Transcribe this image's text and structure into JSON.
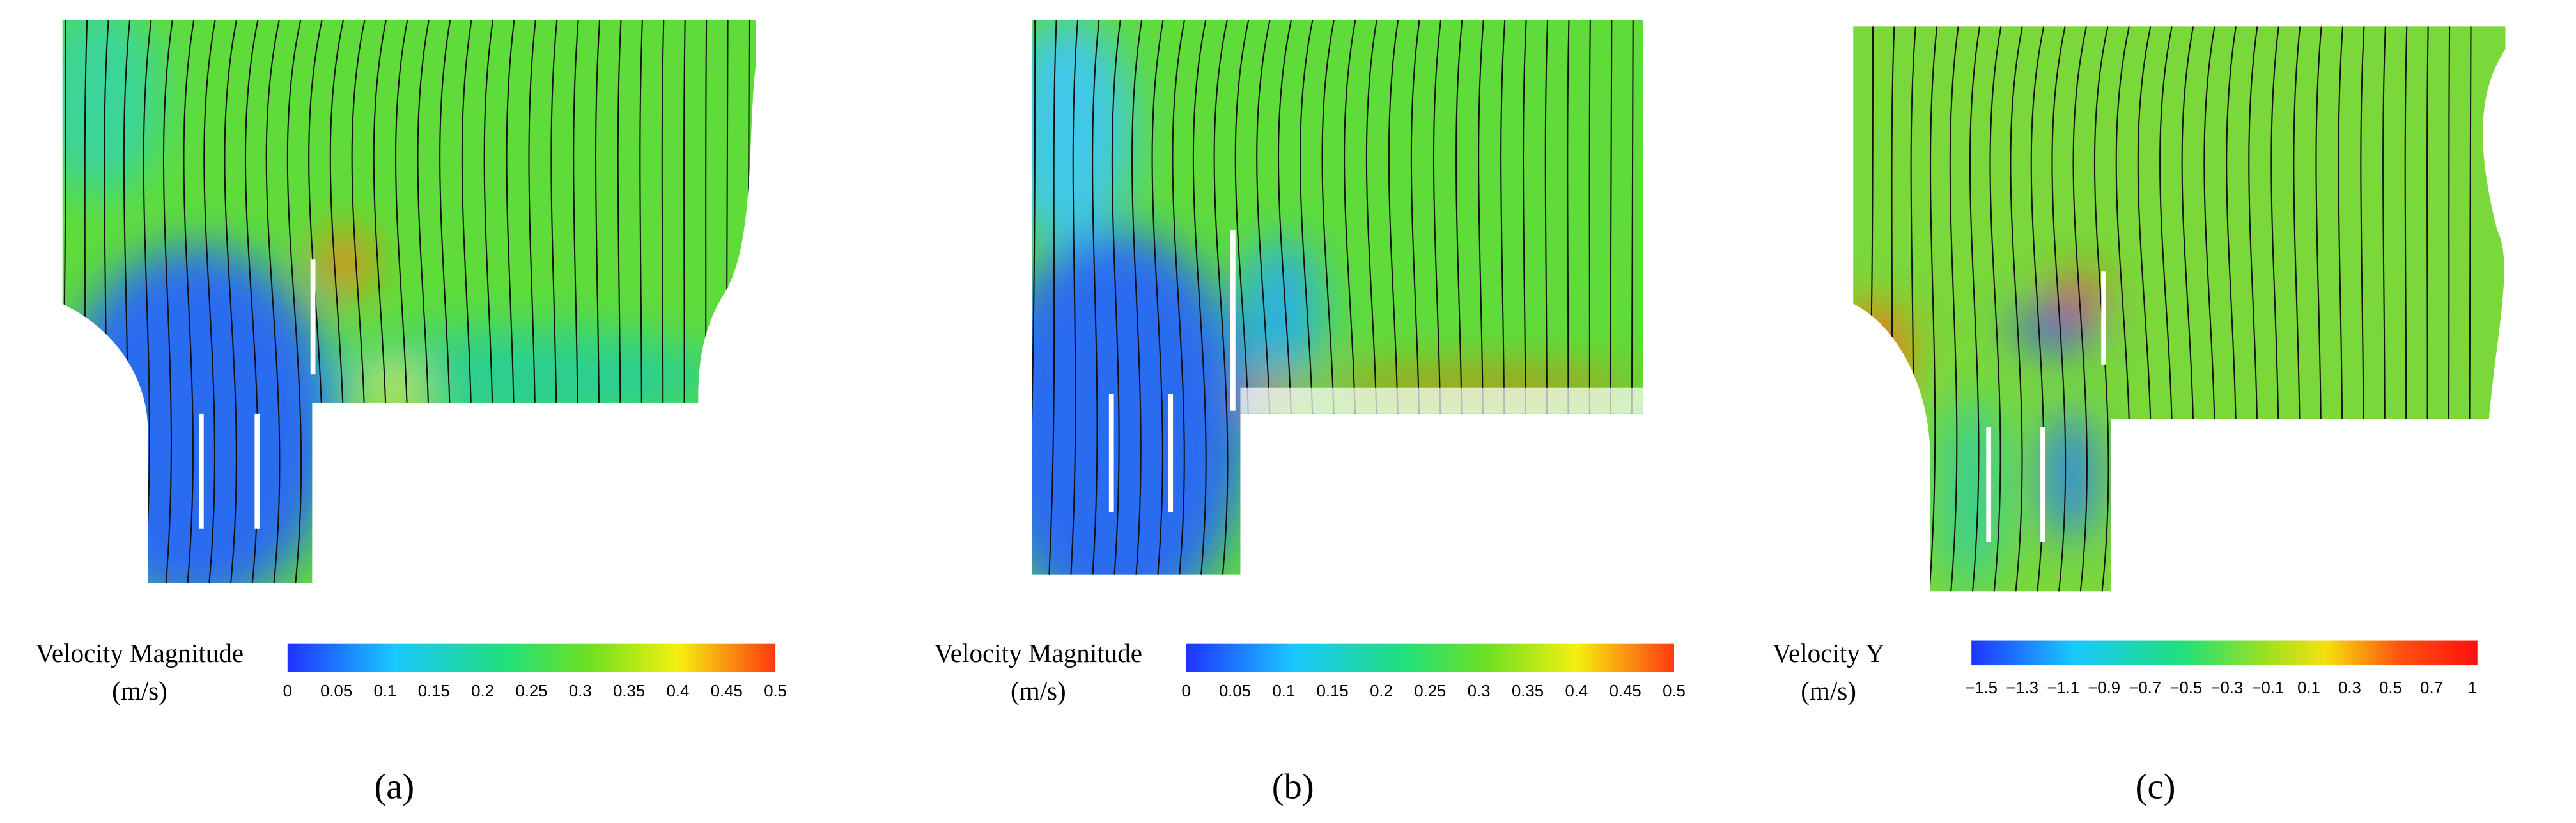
{
  "panels": [
    {
      "colorbar": {
        "title": "Velocity Magnitude",
        "unit": "(m/s)",
        "ticks": [
          "0",
          "0.05",
          "0.1",
          "0.15",
          "0.2",
          "0.25",
          "0.3",
          "0.35",
          "0.4",
          "0.45",
          "0.5"
        ]
      },
      "caption": "(a)"
    },
    {
      "colorbar": {
        "title": "Velocity Magnitude",
        "unit": "(m/s)",
        "ticks": [
          "0",
          "0.05",
          "0.1",
          "0.15",
          "0.2",
          "0.25",
          "0.3",
          "0.35",
          "0.4",
          "0.45",
          "0.5"
        ]
      },
      "caption": "(b)"
    },
    {
      "colorbar": {
        "title": "Velocity Y",
        "unit": "(m/s)",
        "ticks": [
          "−1.5",
          "−1.3",
          "−1.1",
          "−0.9",
          "−0.7",
          "−0.5",
          "−0.3",
          "−0.1",
          "0.1",
          "0.3",
          "0.5",
          "0.7",
          "1"
        ]
      },
      "caption": "(c)"
    }
  ]
}
